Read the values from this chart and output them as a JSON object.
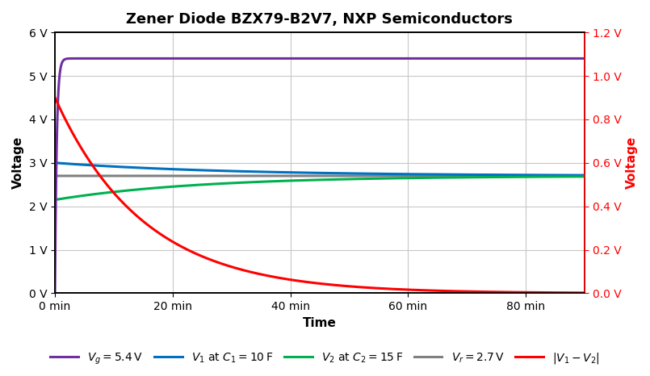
{
  "title": "Zener Diode BZX79-B2V7, NXP Semiconductors",
  "xlabel": "Time",
  "ylabel_left": "Voltage",
  "ylabel_right": "Voltage",
  "t_max_min": 90,
  "ylim_left": [
    0,
    6
  ],
  "ylim_right": [
    0,
    1.2
  ],
  "yticks_left": [
    0,
    1,
    2,
    3,
    4,
    5,
    6
  ],
  "yticks_right": [
    0.0,
    0.2,
    0.4,
    0.6,
    0.8,
    1.0,
    1.2
  ],
  "xticks_min": [
    0,
    20,
    40,
    60,
    80
  ],
  "Vg": 5.4,
  "Vr": 2.7,
  "V1_0": 3.0,
  "V2_0": 2.15,
  "Vdiff_0": 0.9,
  "tau_diff_min": 15.0,
  "tau1_min": 30.0,
  "tau2_min": 25.0,
  "colors": {
    "Vg": "#7030a0",
    "V1": "#0070c0",
    "V2": "#00b050",
    "Vr": "#808080",
    "Vdiff": "#ff0000"
  },
  "line_widths": {
    "Vg": 2.2,
    "V1": 2.2,
    "V2": 2.2,
    "Vr": 2.2,
    "Vdiff": 2.2
  },
  "legend_labels": {
    "Vg": "$V_g = 5.4\\,\\mathrm{V}$",
    "V1": "$V_1$ at $C_1 = 10\\,\\mathrm{F}$",
    "V2": "$V_2$ at $C_2 = 15\\,\\mathrm{F}$",
    "Vr": "$V_r = 2.7\\,\\mathrm{V}$",
    "Vdiff": "$|V_1-V_2|$"
  },
  "background_color": "#ffffff",
  "grid_color": "#c8c8c8",
  "title_fontsize": 13,
  "label_fontsize": 11,
  "tick_fontsize": 10,
  "legend_fontsize": 10,
  "figsize": [
    8.05,
    4.66
  ],
  "dpi": 100
}
